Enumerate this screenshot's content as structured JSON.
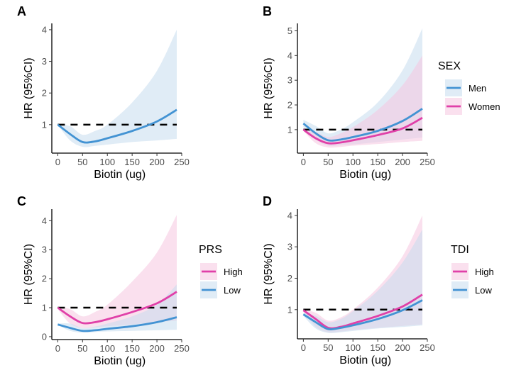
{
  "chart_data": [
    {
      "panel": "A",
      "type": "line",
      "xlabel": "Biotin (ug)",
      "ylabel": "HR (95%CI)",
      "xlim": [
        -12,
        250
      ],
      "ylim": [
        0.1,
        4.2
      ],
      "xticks": [
        0,
        50,
        100,
        150,
        200,
        250
      ],
      "yticks": [
        1,
        2,
        3,
        4
      ],
      "reference_line": 1,
      "legend": null,
      "x": [
        0,
        25,
        50,
        75,
        100,
        150,
        200,
        240
      ],
      "series": [
        {
          "color": "#4393d3",
          "ribbon_color": "#c6dcee",
          "values": [
            1.0,
            0.7,
            0.45,
            0.47,
            0.57,
            0.8,
            1.1,
            1.47
          ],
          "upper": [
            1.0,
            0.95,
            0.68,
            0.8,
            1.0,
            1.7,
            2.7,
            4.0
          ],
          "lower": [
            1.0,
            0.5,
            0.3,
            0.33,
            0.37,
            0.45,
            0.5,
            0.55
          ]
        }
      ]
    },
    {
      "panel": "B",
      "type": "line",
      "xlabel": "Biotin (ug)",
      "ylabel": "HR (95%CI)",
      "xlim": [
        -12,
        250
      ],
      "ylim": [
        0.05,
        5.3
      ],
      "xticks": [
        0,
        50,
        100,
        150,
        200,
        250
      ],
      "yticks": [
        1,
        2,
        3,
        4,
        5
      ],
      "reference_line": 1,
      "legend": {
        "title": "SEX",
        "position": "right"
      },
      "x": [
        0,
        25,
        50,
        75,
        100,
        150,
        200,
        240
      ],
      "series": [
        {
          "name": "Men",
          "color": "#4393d3",
          "ribbon_color": "#c6dcee",
          "values": [
            1.25,
            0.85,
            0.57,
            0.6,
            0.7,
            0.95,
            1.35,
            1.85
          ],
          "upper": [
            1.4,
            1.15,
            0.85,
            1.0,
            1.3,
            2.1,
            3.4,
            5.1
          ],
          "lower": [
            1.1,
            0.6,
            0.35,
            0.37,
            0.4,
            0.5,
            0.6,
            0.68
          ]
        },
        {
          "name": "Women",
          "color": "#e040a8",
          "ribbon_color": "#f5c6e0",
          "values": [
            1.0,
            0.65,
            0.45,
            0.48,
            0.57,
            0.78,
            1.05,
            1.48
          ],
          "upper": [
            1.05,
            0.9,
            0.7,
            0.85,
            1.1,
            1.8,
            2.8,
            4.0
          ],
          "lower": [
            0.95,
            0.45,
            0.28,
            0.3,
            0.35,
            0.42,
            0.5,
            0.55
          ]
        }
      ]
    },
    {
      "panel": "C",
      "type": "line",
      "xlabel": "Biotin (ug)",
      "ylabel": "HR (95%CI)",
      "xlim": [
        -12,
        250
      ],
      "ylim": [
        -0.1,
        4.4
      ],
      "xticks": [
        0,
        50,
        100,
        150,
        200,
        250
      ],
      "yticks": [
        0,
        1,
        2,
        3,
        4
      ],
      "reference_line": 1,
      "legend": {
        "title": "PRS",
        "position": "right"
      },
      "x": [
        0,
        25,
        50,
        75,
        100,
        150,
        200,
        240
      ],
      "series": [
        {
          "name": "High",
          "color": "#e040a8",
          "ribbon_color": "#f5c6e0",
          "values": [
            1.0,
            0.7,
            0.47,
            0.5,
            0.6,
            0.85,
            1.15,
            1.55
          ],
          "upper": [
            1.0,
            0.95,
            0.7,
            0.85,
            1.1,
            1.9,
            2.9,
            4.2
          ],
          "lower": [
            0.95,
            0.45,
            0.3,
            0.32,
            0.36,
            0.42,
            0.5,
            0.55
          ]
        },
        {
          "name": "Low",
          "color": "#4393d3",
          "ribbon_color": "#c6dcee",
          "values": [
            0.42,
            0.3,
            0.2,
            0.22,
            0.27,
            0.36,
            0.5,
            0.67
          ],
          "upper": [
            0.45,
            0.45,
            0.3,
            0.35,
            0.45,
            0.7,
            1.1,
            1.8
          ],
          "lower": [
            0.4,
            0.2,
            0.14,
            0.16,
            0.18,
            0.2,
            0.22,
            0.24
          ]
        }
      ]
    },
    {
      "panel": "D",
      "type": "line",
      "xlabel": "Biotin (ug)",
      "ylabel": "HR (95%CI)",
      "xlim": [
        -12,
        250
      ],
      "ylim": [
        0.07,
        4.2
      ],
      "xticks": [
        0,
        50,
        100,
        150,
        200,
        250
      ],
      "yticks": [
        1,
        2,
        3,
        4
      ],
      "reference_line": 1,
      "legend": {
        "title": "TDI",
        "position": "right"
      },
      "x": [
        0,
        25,
        50,
        75,
        100,
        150,
        200,
        240
      ],
      "series": [
        {
          "name": "High",
          "color": "#e040a8",
          "ribbon_color": "#f5c6e0",
          "values": [
            0.98,
            0.7,
            0.42,
            0.45,
            0.56,
            0.8,
            1.1,
            1.48
          ],
          "upper": [
            1.0,
            0.9,
            0.65,
            0.75,
            1.0,
            1.7,
            2.7,
            4.0
          ],
          "lower": [
            0.95,
            0.45,
            0.28,
            0.3,
            0.35,
            0.42,
            0.48,
            0.53
          ]
        },
        {
          "name": "Low",
          "color": "#4393d3",
          "ribbon_color": "#c6dcee",
          "values": [
            0.85,
            0.6,
            0.38,
            0.42,
            0.5,
            0.7,
            0.98,
            1.3
          ],
          "upper": [
            0.9,
            0.8,
            0.6,
            0.7,
            0.95,
            1.6,
            2.5,
            3.55
          ],
          "lower": [
            0.8,
            0.4,
            0.26,
            0.28,
            0.32,
            0.4,
            0.45,
            0.5
          ]
        }
      ]
    }
  ]
}
